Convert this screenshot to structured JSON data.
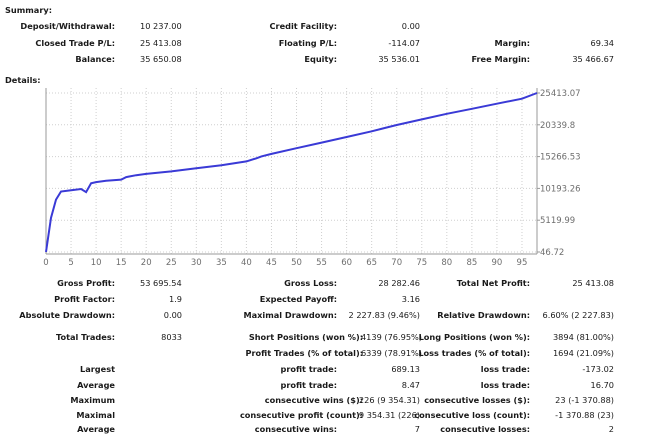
{
  "summary": {
    "title": "Summary:",
    "rows": [
      [
        {
          "label": "Deposit/Withdrawal:",
          "value": "10 237.00"
        },
        {
          "label": "Credit Facility:",
          "value": "0.00"
        },
        {
          "label": "",
          "value": ""
        }
      ],
      [
        {
          "label": "Closed Trade P/L:",
          "value": "25 413.08"
        },
        {
          "label": "Floating P/L:",
          "value": "-114.07"
        },
        {
          "label": "Margin:",
          "value": "69.34"
        }
      ],
      [
        {
          "label": "Balance:",
          "value": "35 650.08"
        },
        {
          "label": "Equity:",
          "value": "35 536.01"
        },
        {
          "label": "Free Margin:",
          "value": "35 466.67"
        }
      ]
    ]
  },
  "details": {
    "title": "Details:"
  },
  "chart_data": {
    "type": "line",
    "title": "",
    "xlabel": "",
    "ylabel": "",
    "x_ticks": [
      "0",
      "5",
      "10",
      "15",
      "20",
      "25",
      "30",
      "35",
      "40",
      "45",
      "50",
      "55",
      "60",
      "65",
      "70",
      "75",
      "80",
      "85",
      "90",
      "95"
    ],
    "y_ticks": [
      "25413.07",
      "20339.8",
      "15266.53",
      "10193.26",
      "5119.99",
      "46.72"
    ],
    "xlim": [
      0,
      98
    ],
    "ylim": [
      46.72,
      25413.07
    ],
    "grid": true,
    "line_color": "#3a3ad6",
    "series": [
      {
        "x": [
          0,
          1,
          2,
          3,
          5,
          7,
          8,
          9,
          10,
          12,
          15,
          16,
          18,
          20,
          25,
          30,
          35,
          40,
          42,
          43,
          45,
          50,
          55,
          60,
          65,
          70,
          75,
          80,
          85,
          90,
          95,
          98
        ],
        "y": [
          46.72,
          5500,
          8400,
          9700,
          9900,
          10100,
          9600,
          11000,
          11200,
          11400,
          11600,
          12000,
          12300,
          12500,
          12900,
          13400,
          13900,
          14500,
          15000,
          15300,
          15700,
          16600,
          17500,
          18400,
          19300,
          20300,
          21200,
          22100,
          22900,
          23700,
          24500,
          25413.07
        ]
      }
    ]
  },
  "stats": {
    "gross_profit": {
      "label": "Gross Profit:",
      "value": "53 695.54"
    },
    "gross_loss": {
      "label": "Gross Loss:",
      "value": "28 282.46"
    },
    "total_net_profit": {
      "label": "Total Net Profit:",
      "value": "25 413.08"
    },
    "profit_factor": {
      "label": "Profit Factor:",
      "value": "1.9"
    },
    "expected_payoff": {
      "label": "Expected Payoff:",
      "value": "3.16"
    },
    "absolute_drawdown": {
      "label": "Absolute Drawdown:",
      "value": "0.00"
    },
    "maximal_drawdown": {
      "label": "Maximal Drawdown:",
      "value": "2 227.83 (9.46%)"
    },
    "relative_drawdown": {
      "label": "Relative Drawdown:",
      "value": "6.60% (2 227.83)"
    },
    "total_trades": {
      "label": "Total Trades:",
      "value": "8033"
    },
    "short_positions": {
      "label": "Short Positions (won %):",
      "value": "4139 (76.95%)"
    },
    "long_positions": {
      "label": "Long Positions (won %):",
      "value": "3894 (81.00%)"
    },
    "profit_trades": {
      "label": "Profit Trades (% of total):",
      "value": "6339 (78.91%)"
    },
    "loss_trades": {
      "label": "Loss trades (% of total):",
      "value": "1694 (21.09%)"
    },
    "rows": [
      {
        "left": "Largest",
        "mid_label": "profit trade:",
        "mid_value": "689.13",
        "right_label": "loss trade:",
        "right_value": "-173.02"
      },
      {
        "left": "Average",
        "mid_label": "profit trade:",
        "mid_value": "8.47",
        "right_label": "loss trade:",
        "right_value": "16.70"
      },
      {
        "left": "Maximum",
        "mid_label": "consecutive wins ($):",
        "mid_value": "226 (9 354.31)",
        "right_label": "consecutive losses ($):",
        "right_value": "23 (-1 370.88)"
      },
      {
        "left": "Maximal",
        "mid_label": "consecutive profit (count):",
        "mid_value": "9 354.31 (226)",
        "right_label": "consecutive loss (count):",
        "right_value": "-1 370.88 (23)"
      },
      {
        "left": "Average",
        "mid_label": "consecutive wins:",
        "mid_value": "7",
        "right_label": "consecutive losses:",
        "right_value": "2"
      }
    ]
  }
}
